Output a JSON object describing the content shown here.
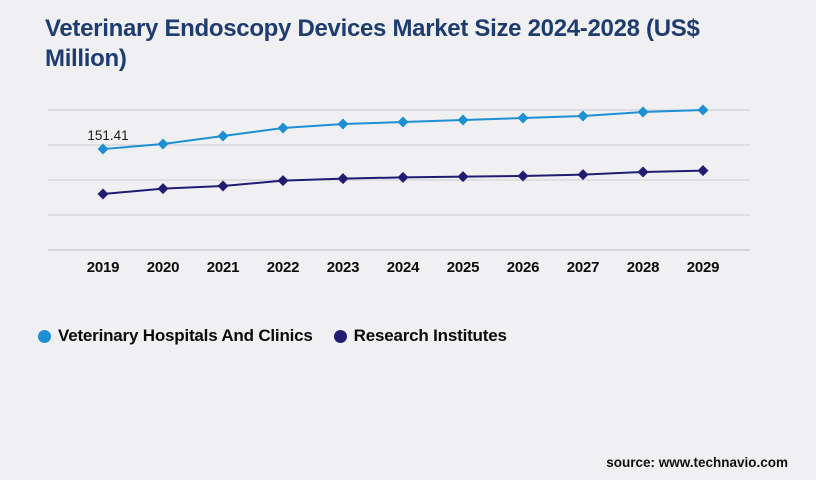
{
  "title": "Veterinary Endoscopy Devices Market Size 2024-2028 (US$ Million)",
  "source": "source: www.technavio.com",
  "colors": {
    "background": "#f0f0f3",
    "title": "#1e3c6e",
    "gridline": "#cbcbd0",
    "axis_line": "#b7b7bc",
    "series1": "#1f8fd4",
    "series2": "#211c72",
    "tick_text": "#0b0b0b",
    "label_text": "#1a1a1a"
  },
  "chart_data": {
    "type": "line",
    "title": "Veterinary Endoscopy Devices Market Size 2024-2028 (US$ Million)",
    "x": [
      2019,
      2020,
      2021,
      2022,
      2023,
      2024,
      2025,
      2026,
      2027,
      2028,
      2029
    ],
    "series": [
      {
        "name": "Veterinary Hospitals And Clinics",
        "color": "#1f8fd4",
        "values": [
          151.41,
          159,
          171,
          183,
          189,
          192,
          195,
          198,
          201,
          207,
          210
        ]
      },
      {
        "name": "Research Institutes",
        "color": "#211c72",
        "values": [
          84,
          92,
          96,
          104,
          107,
          109,
          110,
          111,
          113,
          117,
          119
        ]
      }
    ],
    "point_labels": [
      {
        "series": 0,
        "index": 0,
        "text": "151.41"
      }
    ],
    "xlabel": "",
    "ylabel": "",
    "ylim": [
      0,
      210
    ],
    "y_gridlines": 5,
    "grid": "horizontal",
    "marker": "diamond",
    "legend_position": "bottom-left",
    "y_axis_labels_visible": false
  },
  "legend": {
    "items": [
      {
        "label": "Veterinary Hospitals And Clinics",
        "color": "#1f8fd4"
      },
      {
        "label": "Research Institutes",
        "color": "#211c72"
      }
    ]
  }
}
